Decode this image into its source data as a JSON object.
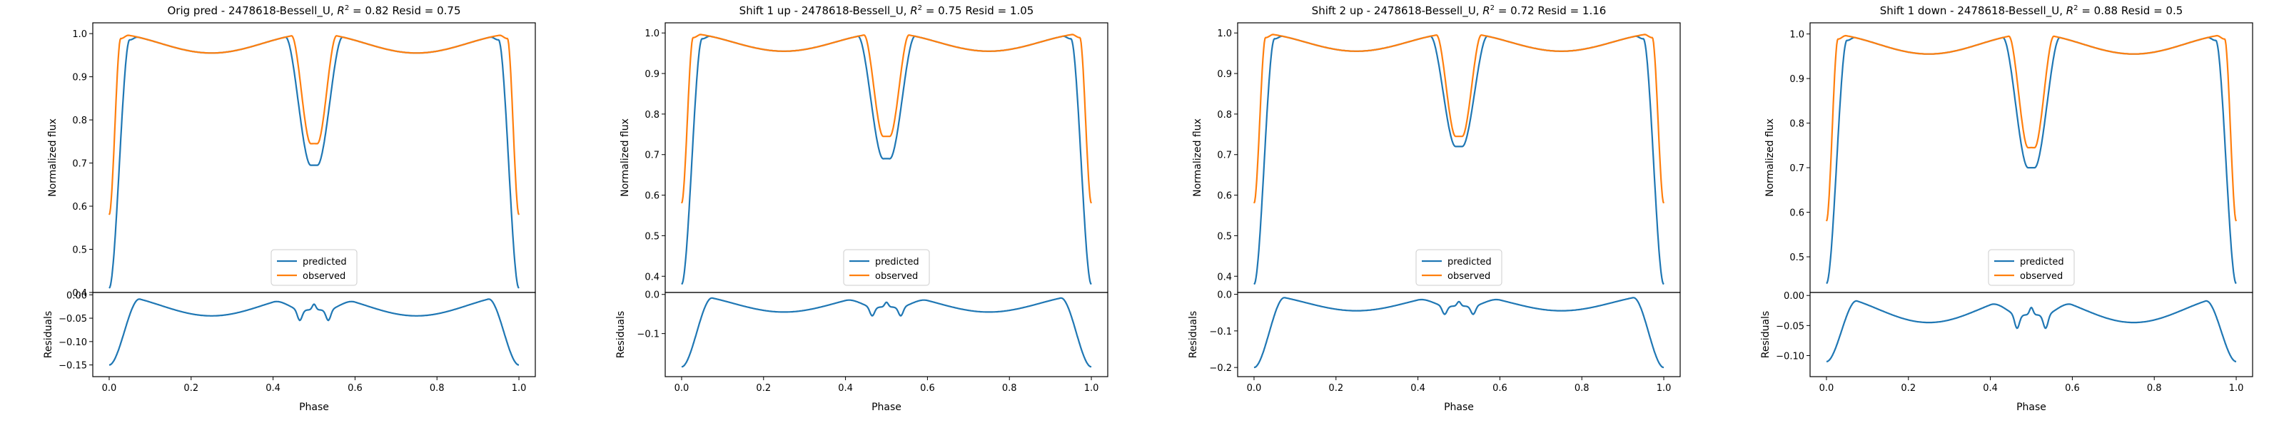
{
  "figure": {
    "x_label": "Phase",
    "y_label_top": "Normalized flux",
    "y_label_bottom": "Residuals",
    "legend": {
      "items": [
        "predicted",
        "observed"
      ],
      "placement": "lower center"
    },
    "colors": {
      "predicted": "#1f77b4",
      "observed": "#ff7f0e"
    }
  },
  "chart_data": [
    {
      "type": "line",
      "title": "Orig pred - 2478618-Bessell_U, $R^2 = 0.82$ Resid = 0.75",
      "title_parts": {
        "prefix": "Orig pred - 2478618-Bessell_U, ",
        "r2_value": "0.82",
        "suffix": " Resid = 0.75"
      },
      "xlabel": "Phase",
      "ylabel": "Normalized flux",
      "xlim": [
        -0.04,
        1.04
      ],
      "ylim": [
        0.4,
        1.025
      ],
      "yticks": [
        "0.4",
        "0.5",
        "0.6",
        "0.7",
        "0.8",
        "0.9",
        "1.0"
      ],
      "xticks": [
        "0.0",
        "0.2",
        "0.4",
        "0.6",
        "0.8",
        "1.0"
      ],
      "pred_primary_depth": 0.58,
      "pred_secondary_min": 0.695,
      "obs_primary_depth": 0.41,
      "obs_secondary_min": 0.745,
      "series": [
        {
          "name": "predicted"
        },
        {
          "name": "observed"
        }
      ],
      "residuals": {
        "ylabel": "Residuals",
        "ylim": [
          -0.175,
          0.005
        ],
        "yticks": [
          "0.00",
          "−0.05",
          "−0.10",
          "−0.15"
        ],
        "min_value": -0.165
      }
    },
    {
      "type": "line",
      "title": "Shift 1 up - 2478618-Bessell_U, $R^2 = 0.75$ Resid = 1.05",
      "title_parts": {
        "prefix": "Shift 1 up - 2478618-Bessell_U, ",
        "r2_value": "0.75",
        "suffix": " Resid = 1.05"
      },
      "xlabel": "Phase",
      "ylabel": "Normalized flux",
      "xlim": [
        -0.04,
        1.04
      ],
      "ylim": [
        0.36,
        1.025
      ],
      "yticks": [
        "0.4",
        "0.5",
        "0.6",
        "0.7",
        "0.8",
        "0.9",
        "1.0"
      ],
      "xticks": [
        "0.0",
        "0.2",
        "0.4",
        "0.6",
        "0.8",
        "1.0"
      ],
      "pred_primary_depth": 0.61,
      "pred_secondary_min": 0.69,
      "obs_primary_depth": 0.41,
      "obs_secondary_min": 0.745,
      "series": [
        {
          "name": "predicted"
        },
        {
          "name": "observed"
        }
      ],
      "residuals": {
        "ylabel": "Residuals",
        "ylim": [
          -0.21,
          0.005
        ],
        "yticks": [
          "0.0",
          "−0.1"
        ],
        "min_value": -0.2
      }
    },
    {
      "type": "line",
      "title": "Shift 2 up - 2478618-Bessell_U, $R^2 = 0.72$ Resid = 1.16",
      "title_parts": {
        "prefix": "Shift 2 up - 2478618-Bessell_U, ",
        "r2_value": "0.72",
        "suffix": " Resid = 1.16"
      },
      "xlabel": "Phase",
      "ylabel": "Normalized flux",
      "xlim": [
        -0.04,
        1.04
      ],
      "ylim": [
        0.36,
        1.025
      ],
      "yticks": [
        "0.4",
        "0.5",
        "0.6",
        "0.7",
        "0.8",
        "0.9",
        "1.0"
      ],
      "xticks": [
        "0.0",
        "0.2",
        "0.4",
        "0.6",
        "0.8",
        "1.0"
      ],
      "pred_primary_depth": 0.61,
      "pred_secondary_min": 0.72,
      "obs_primary_depth": 0.41,
      "obs_secondary_min": 0.745,
      "series": [
        {
          "name": "predicted"
        },
        {
          "name": "observed"
        }
      ],
      "residuals": {
        "ylabel": "Residuals",
        "ylim": [
          -0.225,
          0.005
        ],
        "yticks": [
          "0.0",
          "−0.1",
          "−0.2"
        ],
        "min_value": -0.215
      }
    },
    {
      "type": "line",
      "title": "Shift 1 down - 2478618-Bessell_U, $R^2 = 0.88$ Resid = 0.5",
      "title_parts": {
        "prefix": "Shift 1 down - 2478618-Bessell_U, ",
        "r2_value": "0.88",
        "suffix": " Resid = 0.5"
      },
      "xlabel": "Phase",
      "ylabel": "Normalized flux",
      "xlim": [
        -0.04,
        1.04
      ],
      "ylim": [
        0.42,
        1.025
      ],
      "yticks": [
        "0.5",
        "0.6",
        "0.7",
        "0.8",
        "0.9",
        "1.0"
      ],
      "xticks": [
        "0.0",
        "0.2",
        "0.4",
        "0.6",
        "0.8",
        "1.0"
      ],
      "pred_primary_depth": 0.55,
      "pred_secondary_min": 0.7,
      "obs_primary_depth": 0.41,
      "obs_secondary_min": 0.745,
      "series": [
        {
          "name": "predicted"
        },
        {
          "name": "observed"
        }
      ],
      "residuals": {
        "ylabel": "Residuals",
        "ylim": [
          -0.135,
          0.005
        ],
        "yticks": [
          "0.00",
          "−0.05",
          "−0.10"
        ],
        "min_value": -0.125
      }
    }
  ]
}
